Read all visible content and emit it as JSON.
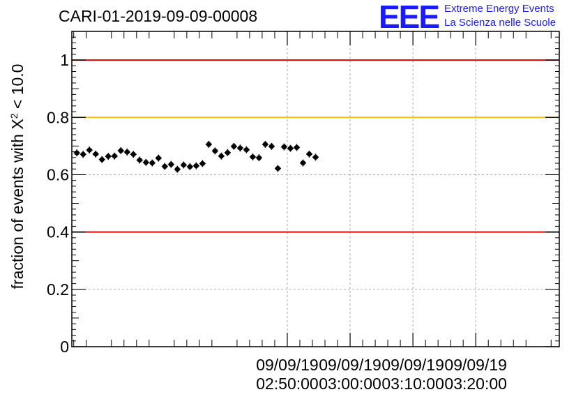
{
  "chart_data": {
    "type": "scatter",
    "title": "CARI-01-2019-09-09-00008",
    "xlabel": "",
    "ylabel": "fraction of events with X² < 10.0",
    "ylabel_parts": {
      "prefix": "fraction of events with X",
      "sup": "2",
      "suffix": " < 10.0"
    },
    "ylim": [
      0,
      1.1
    ],
    "yticks": [
      0,
      0.2,
      0.4,
      0.6,
      0.8,
      1
    ],
    "ytick_labels": [
      "0",
      "0.2",
      "0.4",
      "0.6",
      "0.8",
      "1"
    ],
    "xlim_min": [
      -44.3,
      33.3
    ],
    "xticks_min": [
      -10,
      0,
      10,
      20
    ],
    "xtick_labels": [
      {
        "date": "09/09/19",
        "time": "02:50:00"
      },
      {
        "date": "09/09/19",
        "time": "03:00:00"
      },
      {
        "date": "09/09/19",
        "time": "03:10:00"
      },
      {
        "date": "09/09/19",
        "time": "03:20:00"
      }
    ],
    "reference_lines": [
      {
        "y": 1.0,
        "color": "#e00000"
      },
      {
        "y": 0.8,
        "color": "#ffc000"
      },
      {
        "y": 0.4,
        "color": "#e00000"
      }
    ],
    "grid": true,
    "bin_width_min": 1.0,
    "x_start_min": -43.5,
    "values": [
      0.676,
      0.671,
      0.686,
      0.672,
      0.653,
      0.664,
      0.665,
      0.684,
      0.679,
      0.671,
      0.651,
      0.643,
      0.641,
      0.658,
      0.629,
      0.636,
      0.619,
      0.634,
      0.628,
      0.631,
      0.639,
      0.706,
      0.683,
      0.665,
      0.677,
      0.699,
      0.693,
      0.687,
      0.662,
      0.659,
      0.706,
      0.699,
      0.622,
      0.697,
      0.692,
      0.695,
      0.641,
      0.672,
      0.661
    ],
    "y_err": 0.012
  },
  "logo": {
    "mark": "EEE",
    "line1": "Extreme Energy Events",
    "line2": "La Scienza nelle Scuole"
  },
  "colors": {
    "axis": "#000000",
    "grid": "#aaaaaa",
    "marker": "#000000",
    "logo": "#1a1aff"
  }
}
